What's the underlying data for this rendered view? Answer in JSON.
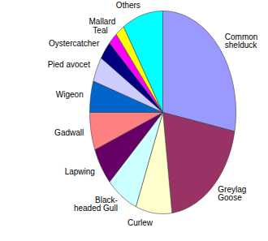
{
  "chart_data": {
    "type": "pie",
    "categories": [
      "Common shelduck",
      "Greylag Goose",
      "Curlew",
      "Black-headed Gull",
      "Lapwing",
      "Gadwall",
      "Wigeon",
      "Pied avocet",
      "Oystercatcher",
      "Teal",
      "Mallard",
      "Others"
    ],
    "values": [
      28,
      20,
      8,
      7,
      6,
      6,
      5,
      4,
      3,
      2,
      2,
      9
    ],
    "colors": [
      "#9999ff",
      "#993366",
      "#ffffcc",
      "#ccffff",
      "#660066",
      "#ff8080",
      "#0066cc",
      "#ccccff",
      "#000080",
      "#ff00ff",
      "#ffff00",
      "#00ffff"
    ]
  }
}
